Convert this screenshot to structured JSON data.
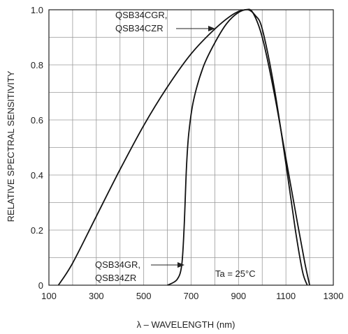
{
  "chart_data": {
    "type": "line",
    "title": "",
    "xlabel": "λ – WAVELENGTH (nm)",
    "ylabel": "RELATIVE SPECTRAL SENSITIVITY",
    "xlim": [
      100,
      1300
    ],
    "ylim": [
      0,
      1.0
    ],
    "grid": true,
    "x_ticks": [
      100,
      300,
      500,
      700,
      900,
      1100,
      1300
    ],
    "x_tick_labels": [
      "100",
      "300",
      "500",
      "700",
      "900",
      "1100",
      "1300"
    ],
    "y_ticks": [
      0,
      0.2,
      0.4,
      0.6,
      0.8,
      1.0
    ],
    "y_tick_labels": [
      "0",
      "0.2",
      "0.4",
      "0.6",
      "0.8",
      "1.0"
    ],
    "series": [
      {
        "name": "QSB34CGR, QSB34CZR",
        "points": [
          [
            140,
            0
          ],
          [
            200,
            0.08
          ],
          [
            300,
            0.25
          ],
          [
            400,
            0.42
          ],
          [
            500,
            0.58
          ],
          [
            600,
            0.72
          ],
          [
            700,
            0.84
          ],
          [
            800,
            0.93
          ],
          [
            880,
            0.985
          ],
          [
            930,
            1.0
          ],
          [
            960,
            0.99
          ],
          [
            1000,
            0.9
          ],
          [
            1050,
            0.7
          ],
          [
            1100,
            0.46
          ],
          [
            1150,
            0.22
          ],
          [
            1180,
            0.08
          ],
          [
            1200,
            0
          ]
        ]
      },
      {
        "name": "QSB34GR, QSB34ZR",
        "points": [
          [
            600,
            0
          ],
          [
            640,
            0.02
          ],
          [
            660,
            0.07
          ],
          [
            670,
            0.2
          ],
          [
            680,
            0.42
          ],
          [
            690,
            0.55
          ],
          [
            710,
            0.67
          ],
          [
            750,
            0.79
          ],
          [
            800,
            0.88
          ],
          [
            850,
            0.95
          ],
          [
            900,
            0.99
          ],
          [
            940,
            1.0
          ],
          [
            970,
            0.98
          ],
          [
            1000,
            0.93
          ],
          [
            1050,
            0.72
          ],
          [
            1100,
            0.44
          ],
          [
            1140,
            0.2
          ],
          [
            1170,
            0.05
          ],
          [
            1190,
            0
          ]
        ]
      }
    ],
    "annotations": {
      "upper_label_line1": "QSB34CGR,",
      "upper_label_line2": "QSB34CZR",
      "lower_label_line1": "QSB34GR,",
      "lower_label_line2": "QSB34ZR",
      "condition": "Ta = 25°C"
    }
  }
}
